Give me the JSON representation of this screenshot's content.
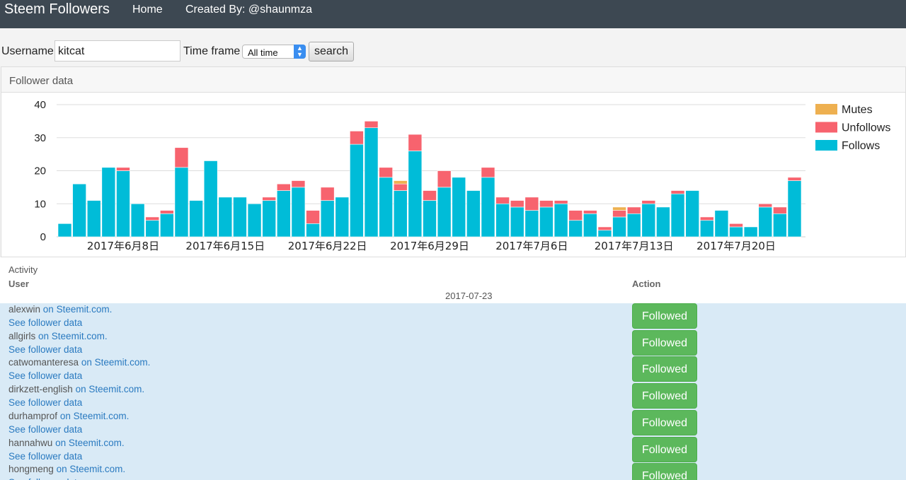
{
  "nav": {
    "brand": "Steem Followers",
    "home": "Home",
    "created": "Created By: @shaunmza"
  },
  "form": {
    "username_label": "Username",
    "username_value": "kitcat",
    "timeframe_label": "Time frame",
    "timeframe_value": "All time",
    "search_label": "search"
  },
  "panel": {
    "title": "Follower data"
  },
  "colors": {
    "follows": "#00bcd8",
    "unfollows": "#f7636e",
    "mutes": "#eeb050",
    "followed_button": "#5cb85c",
    "link": "#2a7ac0"
  },
  "chart_data": {
    "type": "bar",
    "stacked": true,
    "ylim": [
      0,
      40
    ],
    "yticks": [
      0,
      10,
      20,
      30,
      40
    ],
    "grid": true,
    "legend_position": "right",
    "x_tick_labels": [
      "2017年6月8日",
      "2017年6月15日",
      "2017年6月22日",
      "2017年6月29日",
      "2017年7月6日",
      "2017年7月13日",
      "2017年7月20日"
    ],
    "categories": [
      "2017-06-04",
      "2017-06-05",
      "2017-06-06",
      "2017-06-07",
      "2017-06-08",
      "2017-06-09",
      "2017-06-10",
      "2017-06-11",
      "2017-06-12",
      "2017-06-13",
      "2017-06-14",
      "2017-06-15",
      "2017-06-16",
      "2017-06-17",
      "2017-06-18",
      "2017-06-19",
      "2017-06-20",
      "2017-06-21",
      "2017-06-22",
      "2017-06-23",
      "2017-06-24",
      "2017-06-25",
      "2017-06-26",
      "2017-06-27",
      "2017-06-28",
      "2017-06-29",
      "2017-06-30",
      "2017-07-01",
      "2017-07-02",
      "2017-07-03",
      "2017-07-04",
      "2017-07-05",
      "2017-07-06",
      "2017-07-07",
      "2017-07-08",
      "2017-07-09",
      "2017-07-10",
      "2017-07-11",
      "2017-07-12",
      "2017-07-13",
      "2017-07-14",
      "2017-07-15",
      "2017-07-16",
      "2017-07-17",
      "2017-07-18",
      "2017-07-19",
      "2017-07-20",
      "2017-07-21",
      "2017-07-22",
      "2017-07-23",
      "2017-07-24",
      "2017-07-25",
      "2017-07-26"
    ],
    "series": [
      {
        "name": "Follows",
        "color": "#00bcd8",
        "values": [
          4,
          16,
          11,
          21,
          20,
          10,
          5,
          7,
          21,
          11,
          23,
          12,
          12,
          10,
          11,
          14,
          15,
          4,
          11,
          12,
          28,
          33,
          18,
          14,
          26,
          11,
          15,
          18,
          14,
          18,
          10,
          9,
          8,
          9,
          10,
          5,
          7,
          2,
          6,
          7,
          10,
          9,
          13,
          14,
          5,
          8,
          3,
          3,
          9,
          7,
          17,
          0,
          0
        ]
      },
      {
        "name": "Unfollows",
        "color": "#f7636e",
        "values": [
          0,
          0,
          0,
          0,
          1,
          0,
          1,
          1,
          6,
          0,
          0,
          0,
          0,
          0,
          1,
          2,
          2,
          4,
          4,
          0,
          4,
          2,
          3,
          2,
          5,
          3,
          5,
          0,
          0,
          3,
          2,
          2,
          4,
          2,
          1,
          3,
          1,
          1,
          2,
          2,
          1,
          0,
          1,
          0,
          1,
          0,
          1,
          0,
          1,
          2,
          1,
          0,
          0
        ]
      },
      {
        "name": "Mutes",
        "color": "#eeb050",
        "values": [
          0,
          0,
          0,
          0,
          0,
          0,
          0,
          0,
          0,
          0,
          0,
          0,
          0,
          0,
          0,
          0,
          0,
          0,
          0,
          0,
          0,
          0,
          0,
          1,
          0,
          0,
          0,
          0,
          0,
          0,
          0,
          0,
          0,
          0,
          0,
          0,
          0,
          0,
          1,
          0,
          0,
          0,
          0,
          0,
          0,
          0,
          0,
          0,
          0,
          0,
          0,
          0,
          0
        ]
      }
    ]
  },
  "activity": {
    "title": "Activity",
    "col_user": "User",
    "col_action": "Action",
    "date": "2017-07-23",
    "on_steemit": "on Steemit.com.",
    "see_data": "See follower data",
    "action_label": "Followed",
    "rows": [
      {
        "user": "alexwin"
      },
      {
        "user": "allgirls"
      },
      {
        "user": "catwomanteresa"
      },
      {
        "user": "dirkzett-english"
      },
      {
        "user": "durhamprof"
      },
      {
        "user": "hannahwu"
      },
      {
        "user": "hongmeng"
      }
    ]
  }
}
